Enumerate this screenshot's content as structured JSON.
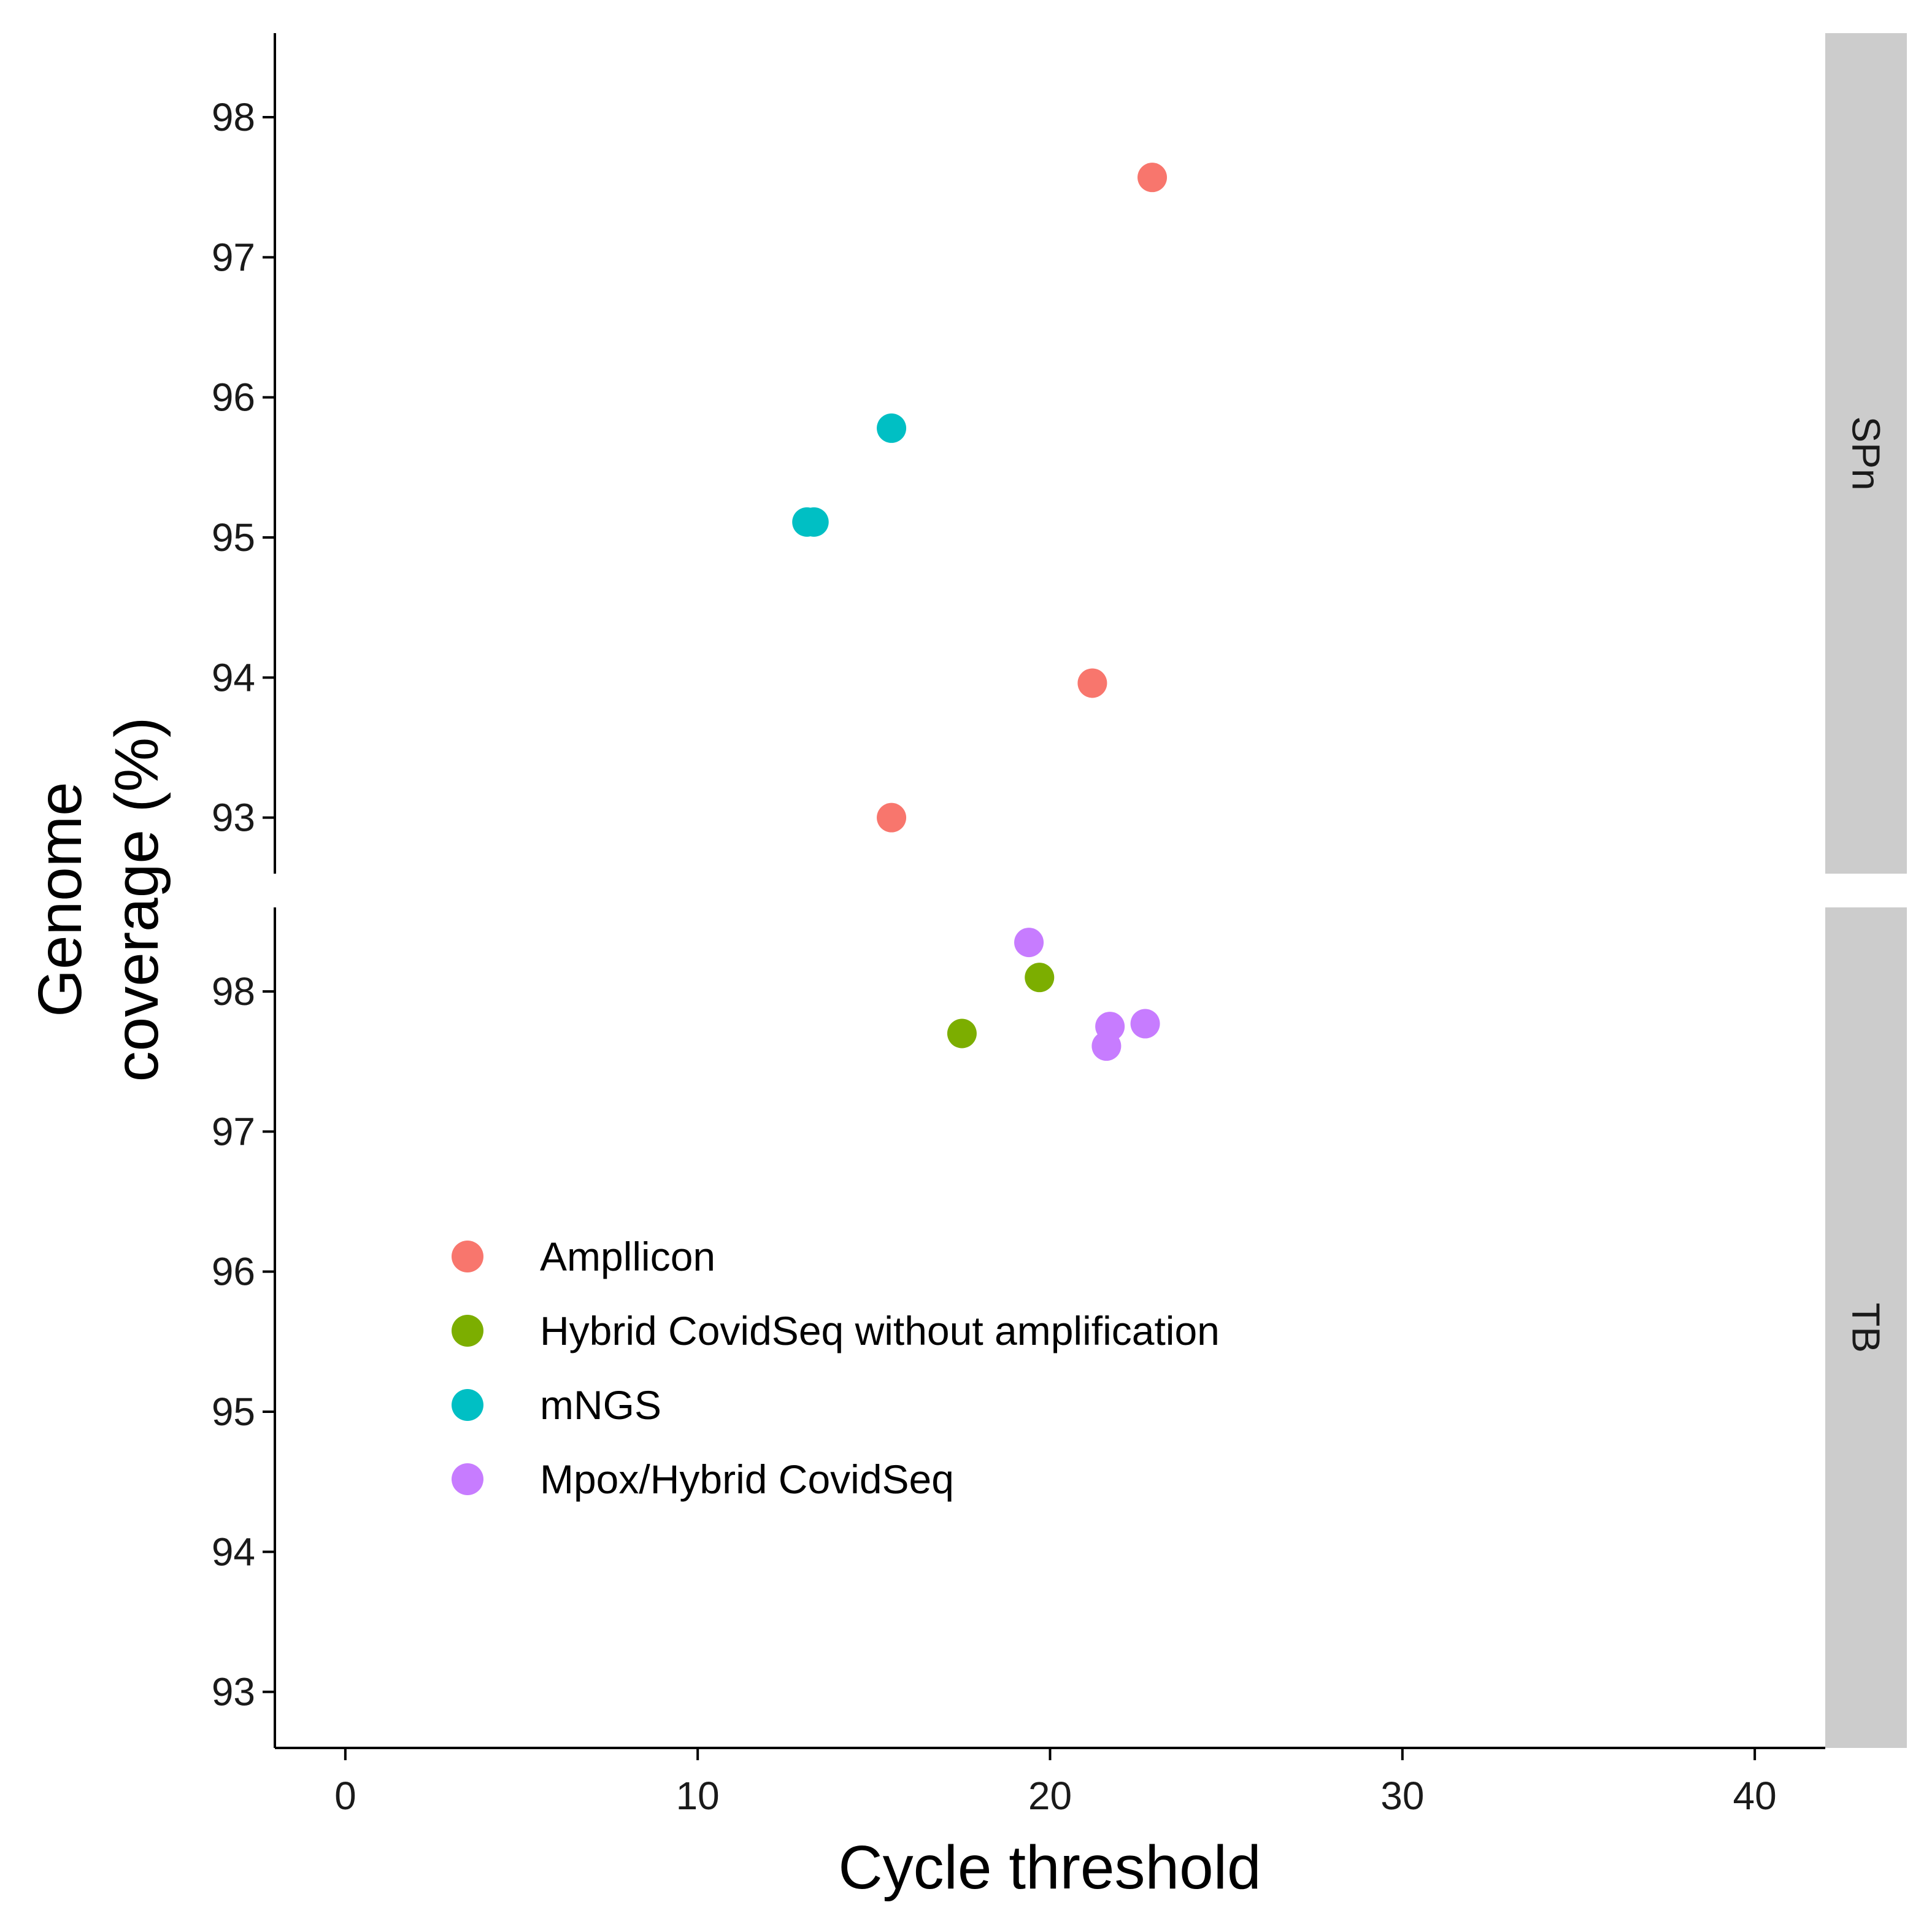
{
  "chart_data": {
    "type": "scatter",
    "facet_layout": "rows",
    "xlabel": "Cycle threshold",
    "ylabel_lines": [
      "Genome",
      "coverage (%)"
    ],
    "xlim": [
      -2,
      42
    ],
    "x_ticks": [
      0,
      10,
      20,
      30,
      40
    ],
    "ylim": [
      92.6,
      98.6
    ],
    "y_ticks": [
      93,
      94,
      95,
      96,
      97,
      98
    ],
    "grid": false,
    "legend_position": "inside-bottom-left",
    "series": [
      {
        "name": "Ampllicon",
        "color": "#F8766D"
      },
      {
        "name": "Hybrid CovidSeq without amplification",
        "color": "#7CAE00"
      },
      {
        "name": "mNGS",
        "color": "#00BFC4"
      },
      {
        "name": "Mpox/Hybrid CovidSeq",
        "color": "#C77CFF"
      }
    ],
    "panels": [
      {
        "strip": "SPn",
        "points": [
          {
            "series": "Ampllicon",
            "x": 22.9,
            "y": 97.57
          },
          {
            "series": "Ampllicon",
            "x": 21.2,
            "y": 93.96
          },
          {
            "series": "Ampllicon",
            "x": 15.5,
            "y": 93.0
          },
          {
            "series": "mNGS",
            "x": 15.5,
            "y": 95.78
          },
          {
            "series": "mNGS",
            "x": 13.1,
            "y": 95.11
          },
          {
            "series": "mNGS",
            "x": 13.3,
            "y": 95.11
          }
        ]
      },
      {
        "strip": "TB",
        "points": [
          {
            "series": "Mpox/Hybrid CovidSeq",
            "x": 19.4,
            "y": 98.35
          },
          {
            "series": "Hybrid CovidSeq without amplification",
            "x": 19.7,
            "y": 98.1
          },
          {
            "series": "Hybrid CovidSeq without amplification",
            "x": 17.5,
            "y": 97.7
          },
          {
            "series": "Mpox/Hybrid CovidSeq",
            "x": 21.7,
            "y": 97.75
          },
          {
            "series": "Mpox/Hybrid CovidSeq",
            "x": 22.7,
            "y": 97.77
          },
          {
            "series": "Mpox/Hybrid CovidSeq",
            "x": 21.6,
            "y": 97.61
          }
        ]
      }
    ]
  }
}
